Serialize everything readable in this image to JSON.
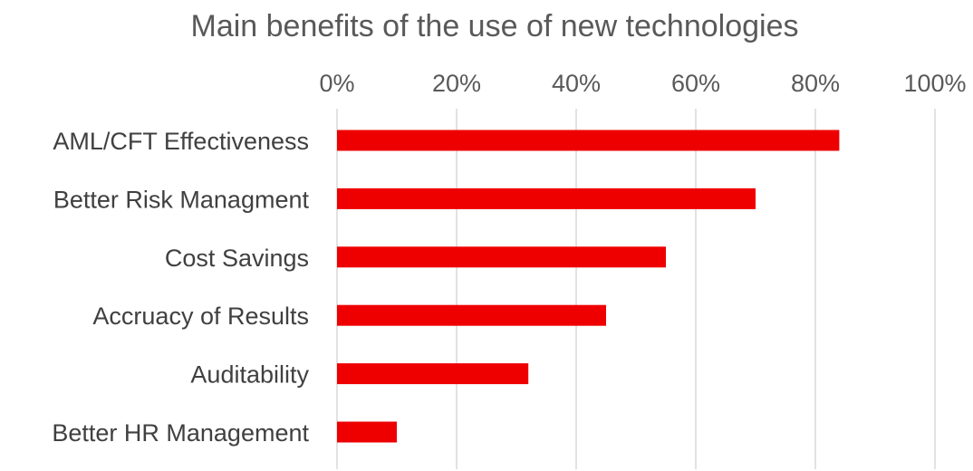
{
  "chart_data": {
    "type": "bar",
    "orientation": "horizontal",
    "title": "Main benefits of the use of new technologies",
    "xlabel": "",
    "ylabel": "",
    "categories": [
      "AML/CFT Effectiveness",
      "Better Risk Managment",
      "Cost Savings",
      "Accruacy of Results",
      "Auditability",
      "Better HR Management"
    ],
    "values": [
      84,
      70,
      55,
      45,
      32,
      10
    ],
    "unit": "%",
    "xlim": [
      0,
      100
    ],
    "xticks": [
      "0%",
      "20%",
      "40%",
      "60%",
      "80%",
      "100%"
    ],
    "axis_position": "top",
    "grid": true,
    "legend": "none",
    "bar_color": "#ee0000"
  }
}
